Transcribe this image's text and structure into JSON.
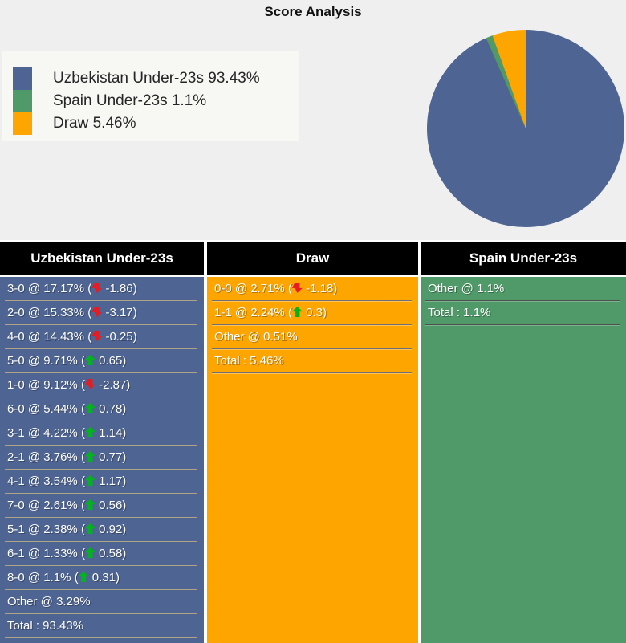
{
  "title": "Score Analysis",
  "legend": {
    "items": [
      {
        "label": "Uzbekistan Under-23s 93.43%",
        "color": "#4e6593"
      },
      {
        "label": "Spain Under-23s 1.1%",
        "color": "#4f9a68"
      },
      {
        "label": "Draw 5.46%",
        "color": "#ffa500"
      }
    ]
  },
  "chart_data": {
    "type": "pie",
    "title": "Score Analysis",
    "labels": [
      "Uzbekistan Under-23s",
      "Spain Under-23s",
      "Draw"
    ],
    "values": [
      93.43,
      1.1,
      5.46
    ],
    "colors": [
      "#4e6593",
      "#4f9a68",
      "#ffa500"
    ],
    "start_angle_deg": 0,
    "direction": "clockwise",
    "legend_position": "upper-left"
  },
  "table": {
    "columns": [
      {
        "id": "home",
        "header": "Uzbekistan Under-23s",
        "color": "#4e6593",
        "rows": [
          {
            "text": "3-0 @ 17.17%",
            "trend": "down",
            "delta": "-1.86"
          },
          {
            "text": "2-0 @ 15.33%",
            "trend": "down",
            "delta": "-3.17"
          },
          {
            "text": "4-0 @ 14.43%",
            "trend": "down",
            "delta": "-0.25"
          },
          {
            "text": "5-0 @ 9.71%",
            "trend": "up",
            "delta": "0.65"
          },
          {
            "text": "1-0 @ 9.12%",
            "trend": "down",
            "delta": "-2.87"
          },
          {
            "text": "6-0 @ 5.44%",
            "trend": "up",
            "delta": "0.78"
          },
          {
            "text": "3-1 @ 4.22%",
            "trend": "up",
            "delta": "1.14"
          },
          {
            "text": "2-1 @ 3.76%",
            "trend": "up",
            "delta": "0.77"
          },
          {
            "text": "4-1 @ 3.54%",
            "trend": "up",
            "delta": "1.17"
          },
          {
            "text": "7-0 @ 2.61%",
            "trend": "up",
            "delta": "0.56"
          },
          {
            "text": "5-1 @ 2.38%",
            "trend": "up",
            "delta": "0.92"
          },
          {
            "text": "6-1 @ 1.33%",
            "trend": "up",
            "delta": "0.58"
          },
          {
            "text": "8-0 @ 1.1%",
            "trend": "up",
            "delta": "0.31"
          },
          {
            "text": "Other @ 3.29%"
          },
          {
            "text": "Total : 93.43%"
          }
        ]
      },
      {
        "id": "draw",
        "header": "Draw",
        "color": "#ffa500",
        "rows": [
          {
            "text": "0-0 @ 2.71%",
            "trend": "down",
            "delta": "-1.18"
          },
          {
            "text": "1-1 @ 2.24%",
            "trend": "up",
            "delta": "0.3"
          },
          {
            "text": "Other @ 0.51%"
          },
          {
            "text": "Total : 5.46%"
          }
        ]
      },
      {
        "id": "away",
        "header": "Spain Under-23s",
        "color": "#4f9a68",
        "rows": [
          {
            "text": "Other @ 1.1%"
          },
          {
            "text": "Total : 1.1%"
          }
        ]
      }
    ]
  },
  "colors": {
    "home": "#4e6593",
    "away": "#4f9a68",
    "draw": "#ffa500",
    "trend_up": "#00b41c",
    "trend_down": "#e61c23",
    "header_bg": "#000000",
    "header_text": "#ffffff",
    "row_text": "#ffffff",
    "page_bg": "#efefef",
    "legend_bg": "#f7f7f4"
  }
}
